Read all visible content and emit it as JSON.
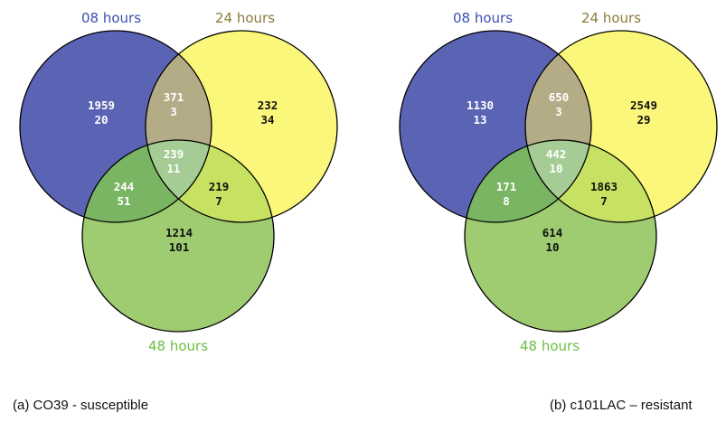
{
  "colors": {
    "set_08": "#5b63b4",
    "set_24": "#fbf77a",
    "set_48": "#9fcc70",
    "label_08": "#3b4fb0",
    "label_24": "#8a7a3a",
    "label_48": "#6abf40",
    "outline": "#000000"
  },
  "diagrams": [
    {
      "caption": "(a) CO39 - susceptible",
      "sets": {
        "a": "08 hours",
        "b": "24 hours",
        "c": "48 hours"
      },
      "regions": {
        "a_only": {
          "n1": "1959",
          "n2": "20",
          "text_color": "#ffffff",
          "fill": ""
        },
        "ab_only": {
          "n1": "371",
          "n2": "3",
          "text_color": "#ffffff",
          "fill": "#b4ac86"
        },
        "b_only": {
          "n1": "232",
          "n2": "34",
          "text_color": "#111111",
          "fill": ""
        },
        "abc": {
          "n1": "239",
          "n2": "11",
          "text_color": "#ffffff",
          "fill": "#a6cc95"
        },
        "ac_only": {
          "n1": "244",
          "n2": "51",
          "text_color": "#ffffff",
          "fill": "#79b562"
        },
        "bc_only": {
          "n1": "219",
          "n2": "7",
          "text_color": "#111111",
          "fill": "#c7e262"
        },
        "c_only": {
          "n1": "1214",
          "n2": "101",
          "text_color": "#111111",
          "fill": ""
        }
      }
    },
    {
      "caption": "(b) c101LAC – resistant",
      "sets": {
        "a": "08 hours",
        "b": "24 hours",
        "c": "48 hours"
      },
      "regions": {
        "a_only": {
          "n1": "1130",
          "n2": "13",
          "text_color": "#ffffff",
          "fill": ""
        },
        "ab_only": {
          "n1": "650",
          "n2": "3",
          "text_color": "#ffffff",
          "fill": "#b4ac86"
        },
        "b_only": {
          "n1": "2549",
          "n2": "29",
          "text_color": "#111111",
          "fill": ""
        },
        "abc": {
          "n1": "442",
          "n2": "10",
          "text_color": "#ffffff",
          "fill": "#a6cc95"
        },
        "ac_only": {
          "n1": "171",
          "n2": "8",
          "text_color": "#ffffff",
          "fill": "#79b562"
        },
        "bc_only": {
          "n1": "1863",
          "n2": "7",
          "text_color": "#111111",
          "fill": "#c7e262"
        },
        "c_only": {
          "n1": "614",
          "n2": "10",
          "text_color": "#111111",
          "fill": ""
        }
      }
    }
  ]
}
